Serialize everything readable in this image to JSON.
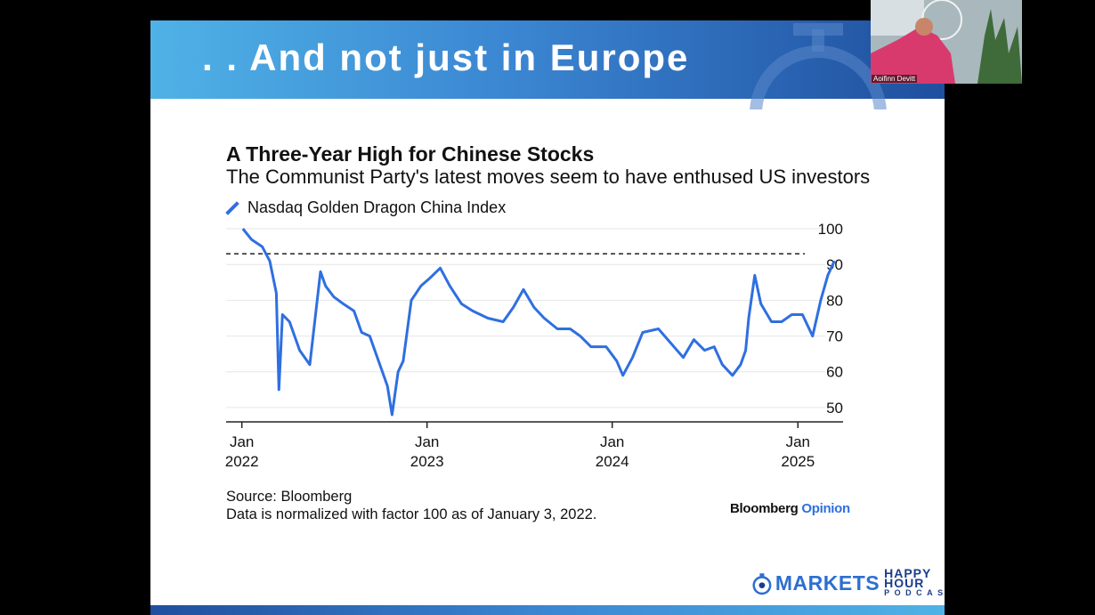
{
  "slide": {
    "title": ". . And not just in Europe",
    "banner_colors": [
      "#4fb2e6",
      "#1f4f9e"
    ]
  },
  "chart_data": {
    "type": "line",
    "title": "A Three-Year High for Chinese Stocks",
    "subtitle": "The Communist Party's latest moves seem to have enthused US investors",
    "series": [
      {
        "name": "Nasdaq Golden Dragon China Index",
        "color": "#2f6fe0",
        "x": [
          "2022-01-03",
          "2022-01-20",
          "2022-02-10",
          "2022-02-25",
          "2022-03-10",
          "2022-03-15",
          "2022-03-22",
          "2022-04-05",
          "2022-04-25",
          "2022-05-15",
          "2022-06-05",
          "2022-06-15",
          "2022-07-01",
          "2022-07-20",
          "2022-08-10",
          "2022-08-25",
          "2022-09-10",
          "2022-09-30",
          "2022-10-15",
          "2022-10-24",
          "2022-11-05",
          "2022-11-15",
          "2022-12-01",
          "2022-12-20",
          "2023-01-05",
          "2023-01-27",
          "2023-02-15",
          "2023-03-10",
          "2023-04-01",
          "2023-05-01",
          "2023-05-31",
          "2023-06-20",
          "2023-07-10",
          "2023-07-31",
          "2023-08-20",
          "2023-09-15",
          "2023-10-10",
          "2023-10-30",
          "2023-11-20",
          "2023-12-20",
          "2024-01-10",
          "2024-01-22",
          "2024-02-10",
          "2024-03-01",
          "2024-04-01",
          "2024-05-20",
          "2024-06-10",
          "2024-07-01",
          "2024-07-20",
          "2024-08-05",
          "2024-08-25",
          "2024-09-10",
          "2024-09-20",
          "2024-09-26",
          "2024-10-08",
          "2024-10-20",
          "2024-11-10",
          "2024-11-30",
          "2024-12-20",
          "2025-01-10",
          "2025-01-30",
          "2025-02-15",
          "2025-03-01",
          "2025-03-14"
        ],
        "y": [
          100,
          97,
          95,
          91,
          82,
          55,
          76,
          74,
          66,
          62,
          88,
          84,
          81,
          79,
          77,
          71,
          70,
          62,
          56,
          48,
          60,
          63,
          80,
          84,
          86,
          89,
          84,
          79,
          77,
          75,
          74,
          78,
          83,
          78,
          75,
          72,
          72,
          70,
          67,
          67,
          63,
          59,
          64,
          71,
          72,
          64,
          69,
          66,
          67,
          62,
          59,
          62,
          66,
          75,
          87,
          79,
          74,
          74,
          76,
          76,
          70,
          80,
          87,
          91
        ]
      }
    ],
    "reference_line": {
      "y": 93,
      "style": "dashed"
    },
    "xlim": [
      "2021-12-01",
      "2025-03-31"
    ],
    "x_ticks": [
      {
        "date": "2022-01-01",
        "line1": "Jan",
        "line2": "2022"
      },
      {
        "date": "2023-01-01",
        "line1": "Jan",
        "line2": "2023"
      },
      {
        "date": "2024-01-01",
        "line1": "Jan",
        "line2": "2024"
      },
      {
        "date": "2025-01-01",
        "line1": "Jan",
        "line2": "2025"
      }
    ],
    "ylim": [
      46,
      101
    ],
    "y_ticks": [
      50,
      60,
      70,
      80,
      90,
      100
    ],
    "y_axis_side": "right",
    "grid": true,
    "legend": "top-left",
    "xlabel": "",
    "ylabel": ""
  },
  "footer": {
    "source_line1": "Source: Bloomberg",
    "source_line2": "Data is normalized with factor 100 as of January 3, 2022.",
    "brand_main": "Bloomberg",
    "brand_opinion": "Opinion"
  },
  "podcast": {
    "markets": "MARKETS",
    "happy_hour": "HAPPY HOUR",
    "podcast": "PODCAST"
  },
  "webcam": {
    "name": "Aoifinn Devitt"
  }
}
